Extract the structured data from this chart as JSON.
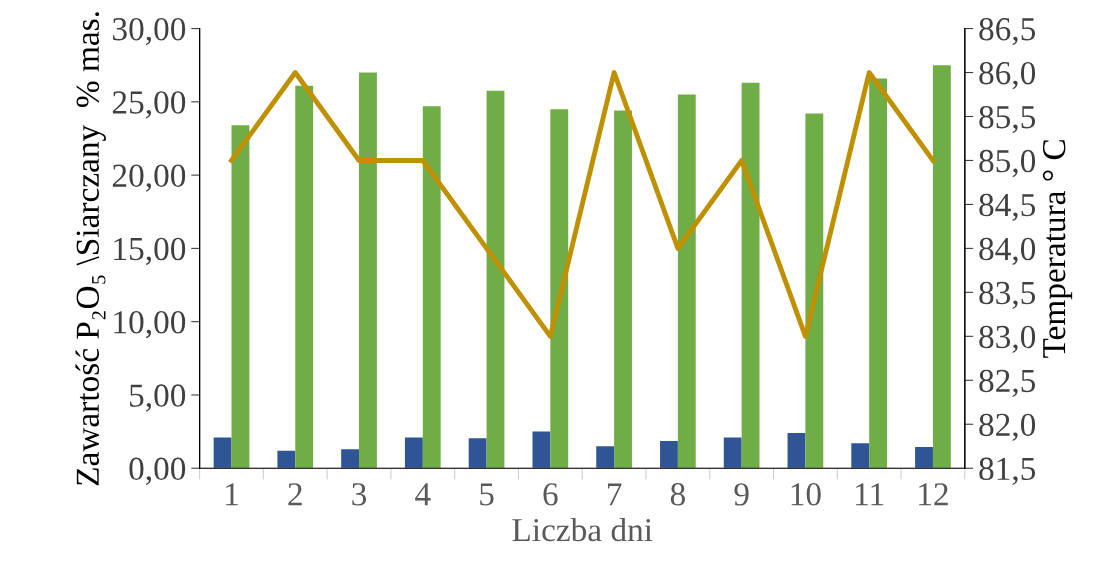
{
  "chart_data": {
    "type": "bar",
    "xlabel": "Liczba dni",
    "ylabel": "Zawartość P₂O₅ \\Siarczany  % mas.",
    "y2label": "Temperatura ° C",
    "categories": [
      "1",
      "2",
      "3",
      "4",
      "5",
      "6",
      "7",
      "8",
      "9",
      "10",
      "11",
      "12"
    ],
    "series": [
      {
        "color": "#2f5597",
        "values": [
          2.1,
          1.2,
          1.3,
          2.1,
          2.05,
          2.5,
          1.5,
          1.85,
          2.1,
          2.4,
          1.7,
          1.45
        ]
      },
      {
        "color": "#70ad47",
        "values": [
          23.4,
          26.1,
          27.0,
          24.7,
          25.75,
          24.5,
          24.4,
          25.5,
          26.3,
          24.2,
          26.6,
          27.5
        ]
      },
      {
        "type": "line",
        "axis": "y2",
        "color": "#bf9000",
        "values": [
          85,
          86,
          85,
          85,
          84,
          83,
          86,
          84,
          85,
          83,
          86,
          85
        ]
      }
    ],
    "ylim": [
      0,
      30
    ],
    "yticks": [
      {
        "value": 0,
        "label": "0,00"
      },
      {
        "value": 5,
        "label": "5,00"
      },
      {
        "value": 10,
        "label": "10,00"
      },
      {
        "value": 15,
        "label": "15,00"
      },
      {
        "value": 20,
        "label": "20,00"
      },
      {
        "value": 25,
        "label": "25,00"
      },
      {
        "value": 30,
        "label": "30,00"
      }
    ],
    "y2lim": [
      81.5,
      86.5
    ],
    "y2ticks": [
      {
        "value": 81.5,
        "label": "81,5"
      },
      {
        "value": 82,
        "label": "82,0"
      },
      {
        "value": 82.5,
        "label": "82,5"
      },
      {
        "value": 83,
        "label": "83,0"
      },
      {
        "value": 83.5,
        "label": "83,5"
      },
      {
        "value": 84,
        "label": "84,0"
      },
      {
        "value": 84.5,
        "label": "84,5"
      },
      {
        "value": 85,
        "label": "85,0"
      },
      {
        "value": 85.5,
        "label": "85,5"
      },
      {
        "value": 86,
        "label": "86,0"
      },
      {
        "value": 86.5,
        "label": "86,5"
      }
    ],
    "grid": false,
    "legend": false,
    "marker": "none",
    "line_style": "solid"
  }
}
